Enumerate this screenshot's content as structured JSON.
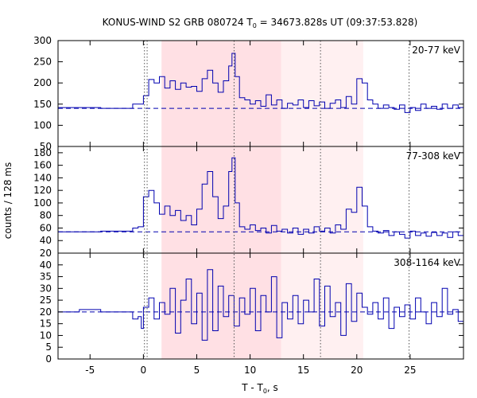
{
  "chart_data": {
    "type": "line",
    "title_main": "KONUS-WIND S2 GRB 080724 T",
    "title_sub": "0",
    "title_rest": " = 34673.828s UT (09:37:53.828)",
    "xlabel_main": "T - T",
    "xlabel_sub": "0",
    "xlabel_rest": ", s",
    "ylabel": "counts / 128 ms",
    "xlim": [
      -8,
      30
    ],
    "xticks": [
      -5,
      0,
      5,
      10,
      15,
      20,
      25
    ],
    "colors": {
      "line": "#0000b0",
      "shade_dark": "#ffe0e4",
      "shade_light": "#fff0f1",
      "vline": "#555555"
    },
    "shaded_regions": [
      {
        "x0": 1.7,
        "x1": 12.9,
        "tone": "dark"
      },
      {
        "x0": 12.9,
        "x1": 20.6,
        "tone": "light"
      }
    ],
    "dotted_lines": [
      0.1,
      0.35,
      8.5,
      16.6,
      24.9
    ],
    "panels": [
      {
        "name": "20-77 keV",
        "ylim": [
          50,
          300
        ],
        "yticks": [
          50,
          100,
          150,
          200,
          250,
          300
        ],
        "background": 140,
        "series": [
          [
            -8,
            142
          ],
          [
            -4,
            142
          ],
          [
            -4,
            140
          ],
          [
            -1,
            140
          ],
          [
            -1,
            150
          ],
          [
            -0.5,
            150
          ],
          [
            0,
            170
          ],
          [
            0.5,
            208
          ],
          [
            1,
            200
          ],
          [
            1.5,
            215
          ],
          [
            2,
            188
          ],
          [
            2.5,
            205
          ],
          [
            3,
            185
          ],
          [
            3.5,
            200
          ],
          [
            4,
            190
          ],
          [
            4.5,
            192
          ],
          [
            5,
            180
          ],
          [
            5.5,
            210
          ],
          [
            6,
            230
          ],
          [
            6.5,
            200
          ],
          [
            7,
            178
          ],
          [
            7.5,
            205
          ],
          [
            8,
            240
          ],
          [
            8.3,
            270
          ],
          [
            8.6,
            215
          ],
          [
            9,
            165
          ],
          [
            9.5,
            160
          ],
          [
            10,
            150
          ],
          [
            10.5,
            158
          ],
          [
            11,
            145
          ],
          [
            11.5,
            172
          ],
          [
            12,
            148
          ],
          [
            12.5,
            160
          ],
          [
            13,
            140
          ],
          [
            13.5,
            152
          ],
          [
            14,
            148
          ],
          [
            14.5,
            160
          ],
          [
            15,
            142
          ],
          [
            15.5,
            158
          ],
          [
            16,
            146
          ],
          [
            16.5,
            155
          ],
          [
            17,
            140
          ],
          [
            17.5,
            152
          ],
          [
            18,
            160
          ],
          [
            18.5,
            142
          ],
          [
            19,
            168
          ],
          [
            19.5,
            150
          ],
          [
            20,
            210
          ],
          [
            20.5,
            200
          ],
          [
            21,
            160
          ],
          [
            21.5,
            150
          ],
          [
            22,
            140
          ],
          [
            22.5,
            148
          ],
          [
            23,
            142
          ],
          [
            23.5,
            138
          ],
          [
            24,
            148
          ],
          [
            24.5,
            130
          ],
          [
            25,
            142
          ],
          [
            25.5,
            135
          ],
          [
            26,
            150
          ],
          [
            26.5,
            140
          ],
          [
            27,
            145
          ],
          [
            27.5,
            138
          ],
          [
            28,
            150
          ],
          [
            28.5,
            140
          ],
          [
            29,
            148
          ],
          [
            29.5,
            142
          ],
          [
            30,
            140
          ]
        ]
      },
      {
        "name": "77-308 keV",
        "ylim": [
          20,
          190
        ],
        "yticks": [
          20,
          40,
          60,
          80,
          100,
          120,
          140,
          160,
          180
        ],
        "background": 54,
        "series": [
          [
            -8,
            54
          ],
          [
            -4,
            54
          ],
          [
            -4,
            55
          ],
          [
            -1,
            55
          ],
          [
            -1,
            60
          ],
          [
            -0.5,
            62
          ],
          [
            0,
            110
          ],
          [
            0.5,
            120
          ],
          [
            1,
            100
          ],
          [
            1.5,
            82
          ],
          [
            2,
            95
          ],
          [
            2.5,
            80
          ],
          [
            3,
            88
          ],
          [
            3.5,
            72
          ],
          [
            4,
            80
          ],
          [
            4.5,
            65
          ],
          [
            5,
            90
          ],
          [
            5.5,
            130
          ],
          [
            6,
            150
          ],
          [
            6.5,
            110
          ],
          [
            7,
            75
          ],
          [
            7.5,
            95
          ],
          [
            8,
            150
          ],
          [
            8.3,
            172
          ],
          [
            8.6,
            100
          ],
          [
            9,
            62
          ],
          [
            9.5,
            58
          ],
          [
            10,
            65
          ],
          [
            10.5,
            56
          ],
          [
            11,
            60
          ],
          [
            11.5,
            52
          ],
          [
            12,
            64
          ],
          [
            12.5,
            55
          ],
          [
            13,
            58
          ],
          [
            13.5,
            52
          ],
          [
            14,
            60
          ],
          [
            14.5,
            50
          ],
          [
            15,
            58
          ],
          [
            15.5,
            52
          ],
          [
            16,
            62
          ],
          [
            16.5,
            55
          ],
          [
            17,
            60
          ],
          [
            17.5,
            52
          ],
          [
            18,
            65
          ],
          [
            18.5,
            58
          ],
          [
            19,
            90
          ],
          [
            19.5,
            85
          ],
          [
            20,
            125
          ],
          [
            20.5,
            95
          ],
          [
            21,
            62
          ],
          [
            21.5,
            55
          ],
          [
            22,
            52
          ],
          [
            22.5,
            56
          ],
          [
            23,
            48
          ],
          [
            23.5,
            54
          ],
          [
            24,
            50
          ],
          [
            24.5,
            44
          ],
          [
            25,
            55
          ],
          [
            25.5,
            48
          ],
          [
            26,
            52
          ],
          [
            26.5,
            47
          ],
          [
            27,
            53
          ],
          [
            27.5,
            48
          ],
          [
            28,
            52
          ],
          [
            28.5,
            45
          ],
          [
            29,
            54
          ],
          [
            29.5,
            48
          ],
          [
            30,
            50
          ]
        ]
      },
      {
        "name": "308-1164 keV",
        "ylim": [
          0,
          45
        ],
        "yticks": [
          0,
          5,
          10,
          15,
          20,
          25,
          30,
          35,
          40
        ],
        "background": 20,
        "series": [
          [
            -8,
            20
          ],
          [
            -6,
            20
          ],
          [
            -6,
            21
          ],
          [
            -4,
            21
          ],
          [
            -4,
            20
          ],
          [
            -1,
            20
          ],
          [
            -1,
            17
          ],
          [
            -0.5,
            18
          ],
          [
            -0.2,
            13
          ],
          [
            0,
            22
          ],
          [
            0.5,
            26
          ],
          [
            1,
            17
          ],
          [
            1.5,
            24
          ],
          [
            2,
            19
          ],
          [
            2.5,
            30
          ],
          [
            3,
            11
          ],
          [
            3.5,
            25
          ],
          [
            4,
            34
          ],
          [
            4.5,
            15
          ],
          [
            5,
            28
          ],
          [
            5.5,
            8
          ],
          [
            6,
            38
          ],
          [
            6.5,
            12
          ],
          [
            7,
            31
          ],
          [
            7.5,
            18
          ],
          [
            8,
            27
          ],
          [
            8.5,
            14
          ],
          [
            9,
            26
          ],
          [
            9.5,
            19
          ],
          [
            10,
            30
          ],
          [
            10.5,
            12
          ],
          [
            11,
            27
          ],
          [
            11.5,
            20
          ],
          [
            12,
            35
          ],
          [
            12.5,
            9
          ],
          [
            13,
            24
          ],
          [
            13.5,
            17
          ],
          [
            14,
            27
          ],
          [
            14.5,
            15
          ],
          [
            15,
            25
          ],
          [
            15.5,
            20
          ],
          [
            16,
            34
          ],
          [
            16.5,
            14
          ],
          [
            17,
            31
          ],
          [
            17.5,
            18
          ],
          [
            18,
            24
          ],
          [
            18.5,
            10
          ],
          [
            19,
            32
          ],
          [
            19.5,
            16
          ],
          [
            20,
            28
          ],
          [
            20.5,
            22
          ],
          [
            21,
            19
          ],
          [
            21.5,
            24
          ],
          [
            22,
            17
          ],
          [
            22.5,
            26
          ],
          [
            23,
            13
          ],
          [
            23.5,
            22
          ],
          [
            24,
            18
          ],
          [
            24.5,
            23
          ],
          [
            25,
            17
          ],
          [
            25.5,
            26
          ],
          [
            26,
            20
          ],
          [
            26.5,
            15
          ],
          [
            27,
            24
          ],
          [
            27.5,
            18
          ],
          [
            28,
            30
          ],
          [
            28.5,
            19
          ],
          [
            29,
            21
          ],
          [
            29.5,
            16
          ],
          [
            30,
            22
          ]
        ]
      }
    ]
  }
}
